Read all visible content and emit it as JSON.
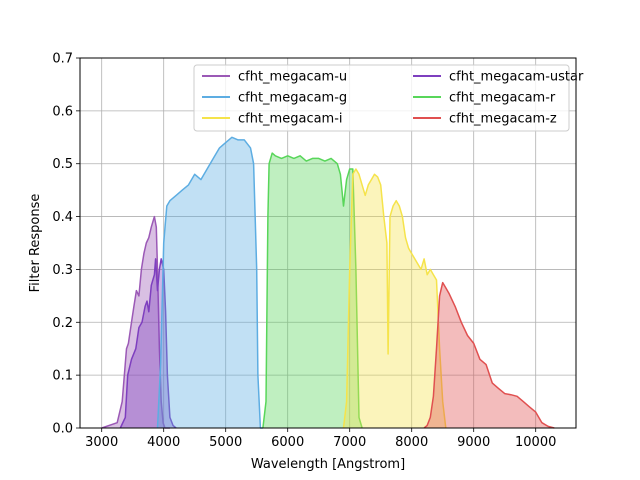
{
  "chart_data": {
    "type": "area",
    "xlabel": "Wavelength [Angstrom]",
    "ylabel": "Filter Response",
    "xlim": [
      2650,
      10650
    ],
    "ylim": [
      0,
      0.7
    ],
    "x_ticks": [
      3000,
      4000,
      5000,
      6000,
      7000,
      8000,
      9000,
      10000
    ],
    "y_ticks": [
      0.0,
      0.1,
      0.2,
      0.3,
      0.4,
      0.5,
      0.6,
      0.7
    ],
    "grid": true,
    "legend_placement": "top-right",
    "legend_columns": 2,
    "series": [
      {
        "name": "cfht_megacam-u",
        "color": "#9b59b6",
        "x": [
          3000,
          3250,
          3330,
          3400,
          3430,
          3480,
          3520,
          3560,
          3600,
          3640,
          3680,
          3720,
          3760,
          3800,
          3850,
          3880,
          3900,
          3930,
          3960,
          3990,
          4020,
          4060,
          4100
        ],
        "y": [
          0.0,
          0.01,
          0.05,
          0.15,
          0.16,
          0.2,
          0.23,
          0.26,
          0.25,
          0.3,
          0.33,
          0.35,
          0.36,
          0.38,
          0.4,
          0.38,
          0.3,
          0.15,
          0.05,
          0.01,
          0.0,
          0.0,
          0.0
        ]
      },
      {
        "name": "cfht_megacam-ustar",
        "color": "#7e3fbf",
        "x": [
          3300,
          3380,
          3420,
          3480,
          3550,
          3600,
          3650,
          3700,
          3730,
          3760,
          3800,
          3850,
          3870,
          3900,
          3930,
          3960,
          4000,
          4030,
          4060,
          4100,
          4150,
          4200
        ],
        "y": [
          0.0,
          0.02,
          0.1,
          0.13,
          0.15,
          0.19,
          0.2,
          0.23,
          0.24,
          0.22,
          0.27,
          0.29,
          0.32,
          0.26,
          0.3,
          0.32,
          0.3,
          0.22,
          0.1,
          0.02,
          0.005,
          0.0
        ]
      },
      {
        "name": "cfht_megacam-g",
        "color": "#5dade2",
        "x": [
          3900,
          3950,
          4000,
          4050,
          4100,
          4200,
          4300,
          4400,
          4500,
          4600,
          4700,
          4800,
          4900,
          5000,
          5100,
          5200,
          5300,
          5400,
          5450,
          5500,
          5520,
          5560,
          5600
        ],
        "y": [
          0.0,
          0.12,
          0.35,
          0.42,
          0.43,
          0.44,
          0.45,
          0.46,
          0.48,
          0.47,
          0.49,
          0.51,
          0.53,
          0.54,
          0.55,
          0.545,
          0.545,
          0.53,
          0.5,
          0.3,
          0.1,
          0.0,
          0.0
        ]
      },
      {
        "name": "cfht_megacam-r",
        "color": "#58d65a",
        "x": [
          5600,
          5650,
          5680,
          5700,
          5750,
          5800,
          5900,
          6000,
          6100,
          6200,
          6300,
          6400,
          6500,
          6600,
          6700,
          6800,
          6850,
          6900,
          6950,
          7000,
          7050,
          7100,
          7150,
          7200
        ],
        "y": [
          0.0,
          0.05,
          0.4,
          0.5,
          0.52,
          0.515,
          0.51,
          0.515,
          0.51,
          0.515,
          0.505,
          0.51,
          0.51,
          0.505,
          0.51,
          0.5,
          0.48,
          0.42,
          0.47,
          0.49,
          0.49,
          0.3,
          0.02,
          0.0
        ]
      },
      {
        "name": "cfht_megacam-i",
        "color": "#f5e34b",
        "x": [
          6900,
          6950,
          7000,
          7050,
          7100,
          7150,
          7200,
          7250,
          7300,
          7350,
          7400,
          7450,
          7500,
          7550,
          7600,
          7620,
          7650,
          7700,
          7750,
          7800,
          7850,
          7900,
          7950,
          8000,
          8050,
          8100,
          8150,
          8200,
          8250,
          8300,
          8350,
          8400,
          8450,
          8500,
          8550
        ],
        "y": [
          0.0,
          0.05,
          0.3,
          0.48,
          0.49,
          0.48,
          0.46,
          0.44,
          0.46,
          0.47,
          0.48,
          0.475,
          0.46,
          0.4,
          0.35,
          0.14,
          0.4,
          0.42,
          0.43,
          0.42,
          0.4,
          0.36,
          0.34,
          0.33,
          0.32,
          0.31,
          0.3,
          0.32,
          0.29,
          0.3,
          0.29,
          0.28,
          0.15,
          0.05,
          0.0
        ]
      },
      {
        "name": "cfht_megacam-z",
        "color": "#e05050",
        "x": [
          8200,
          8250,
          8300,
          8350,
          8400,
          8450,
          8500,
          8550,
          8600,
          8700,
          8800,
          8900,
          9000,
          9100,
          9200,
          9300,
          9400,
          9500,
          9600,
          9700,
          9800,
          9900,
          10000,
          10100,
          10200,
          10300
        ],
        "y": [
          0.0,
          0.005,
          0.02,
          0.06,
          0.15,
          0.25,
          0.275,
          0.265,
          0.255,
          0.23,
          0.2,
          0.175,
          0.16,
          0.13,
          0.12,
          0.085,
          0.075,
          0.065,
          0.063,
          0.06,
          0.05,
          0.04,
          0.03,
          0.01,
          0.003,
          0.0
        ]
      }
    ]
  }
}
